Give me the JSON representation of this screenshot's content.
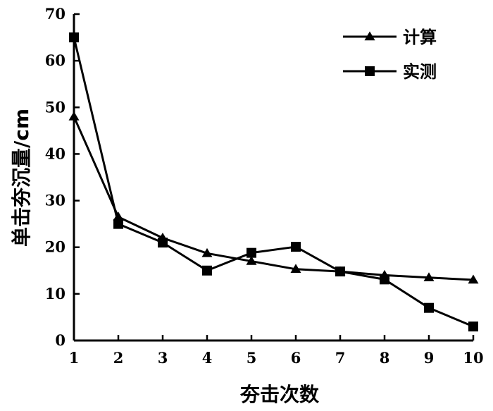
{
  "chart_data": {
    "type": "line",
    "xlabel": "夯击次数",
    "ylabel": "单击夯沉量/cm",
    "x": [
      1,
      2,
      3,
      4,
      5,
      6,
      7,
      8,
      9,
      10
    ],
    "xlim": [
      1,
      10
    ],
    "ylim": [
      0,
      70
    ],
    "xticks": [
      "1",
      "2",
      "3",
      "4",
      "5",
      "6",
      "7",
      "8",
      "9",
      "10"
    ],
    "yticks": [
      "0",
      "10",
      "20",
      "30",
      "40",
      "50",
      "60",
      "70"
    ],
    "grid": false,
    "legend_position": "top-right",
    "series": [
      {
        "name": "计算",
        "marker": "triangle",
        "values": [
          48,
          26.5,
          22,
          18.7,
          17,
          15.3,
          14.8,
          14,
          13.5,
          13
        ]
      },
      {
        "name": "实测",
        "marker": "square",
        "values": [
          65,
          25,
          21,
          15,
          18.8,
          20.1,
          14.8,
          13.1,
          7,
          3
        ]
      }
    ],
    "colors": {
      "line": "#000000",
      "marker": "#000000",
      "background": "#ffffff"
    }
  }
}
